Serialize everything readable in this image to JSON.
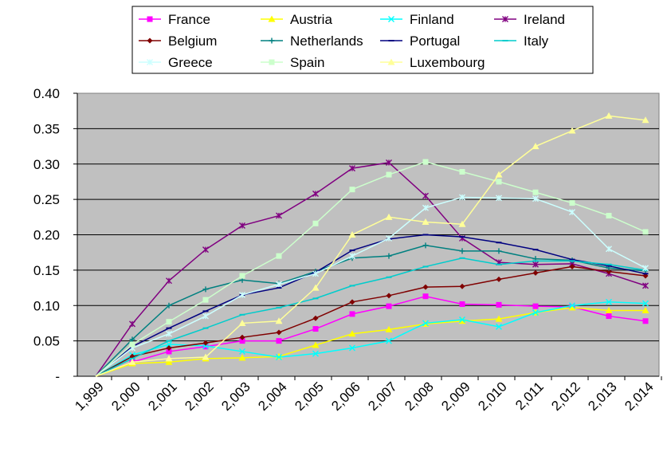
{
  "chart_data": {
    "type": "line",
    "title": "",
    "xlabel": "",
    "ylabel": "",
    "categories": [
      "1,999",
      "2,000",
      "2,001",
      "2,002",
      "2,003",
      "2,004",
      "2,005",
      "2,006",
      "2,007",
      "2,008",
      "2,009",
      "2,010",
      "2,011",
      "2,012",
      "2,013",
      "2,014"
    ],
    "ylim": [
      0,
      0.4
    ],
    "yticks": [
      0,
      0.05,
      0.1,
      0.15,
      0.2,
      0.25,
      0.3,
      0.35,
      0.4
    ],
    "ytick_labels": [
      "-",
      "0.05",
      "0.10",
      "0.15",
      "0.20",
      "0.25",
      "0.30",
      "0.35",
      "0.40"
    ],
    "grid": true,
    "legend_position": "top",
    "plot_background": "#c0c0c0",
    "series": [
      {
        "name": "France",
        "color": "#ff00ff",
        "marker": "square",
        "values": [
          0,
          0.02,
          0.035,
          0.042,
          0.05,
          0.05,
          0.067,
          0.088,
          0.099,
          0.113,
          0.102,
          0.101,
          0.099,
          0.098,
          0.085,
          0.078
        ]
      },
      {
        "name": "Austria",
        "color": "#ffff00",
        "marker": "triangle",
        "values": [
          0,
          0.018,
          0.02,
          0.025,
          0.026,
          0.028,
          0.044,
          0.06,
          0.066,
          0.074,
          0.078,
          0.081,
          0.09,
          0.097,
          0.093,
          0.093
        ]
      },
      {
        "name": "Finland",
        "color": "#00ffff",
        "marker": "x",
        "values": [
          0,
          0.03,
          0.045,
          0.043,
          0.035,
          0.027,
          0.032,
          0.04,
          0.05,
          0.075,
          0.08,
          0.07,
          0.09,
          0.1,
          0.105,
          0.103
        ]
      },
      {
        "name": "Ireland",
        "color": "#800080",
        "marker": "star",
        "values": [
          0,
          0.074,
          0.135,
          0.179,
          0.213,
          0.227,
          0.258,
          0.294,
          0.302,
          0.255,
          0.195,
          0.161,
          0.158,
          0.159,
          0.145,
          0.128
        ]
      },
      {
        "name": "Belgium",
        "color": "#800000",
        "marker": "diamond",
        "values": [
          0,
          0.028,
          0.04,
          0.047,
          0.055,
          0.062,
          0.082,
          0.105,
          0.114,
          0.126,
          0.127,
          0.137,
          0.146,
          0.155,
          0.148,
          0.142
        ]
      },
      {
        "name": "Netherlands",
        "color": "#008080",
        "marker": "plus",
        "values": [
          0,
          0.052,
          0.1,
          0.123,
          0.136,
          0.131,
          0.148,
          0.167,
          0.17,
          0.185,
          0.177,
          0.177,
          0.166,
          0.164,
          0.153,
          0.149
        ]
      },
      {
        "name": "Portugal",
        "color": "#000080",
        "marker": "dash",
        "values": [
          0,
          0.042,
          0.068,
          0.092,
          0.115,
          0.125,
          0.147,
          0.178,
          0.194,
          0.2,
          0.197,
          0.189,
          0.179,
          0.165,
          0.156,
          0.145
        ]
      },
      {
        "name": "Italy",
        "color": "#00cccc",
        "marker": "dash",
        "values": [
          0,
          0.025,
          0.05,
          0.068,
          0.087,
          0.097,
          0.11,
          0.128,
          0.14,
          0.155,
          0.167,
          0.158,
          0.163,
          0.163,
          0.158,
          0.15
        ]
      },
      {
        "name": "Greece",
        "color": "#ccffff",
        "marker": "star",
        "values": [
          0,
          0.04,
          0.06,
          0.085,
          0.115,
          0.13,
          0.145,
          0.17,
          0.195,
          0.238,
          0.253,
          0.252,
          0.251,
          0.232,
          0.18,
          0.153
        ]
      },
      {
        "name": "Spain",
        "color": "#ccffcc",
        "marker": "square",
        "values": [
          0,
          0.045,
          0.077,
          0.108,
          0.142,
          0.17,
          0.216,
          0.264,
          0.285,
          0.303,
          0.289,
          0.275,
          0.26,
          0.245,
          0.227,
          0.204
        ]
      },
      {
        "name": "Luxembourg",
        "color": "#ffff99",
        "marker": "triangle",
        "values": [
          0,
          0.02,
          0.025,
          0.027,
          0.075,
          0.078,
          0.125,
          0.2,
          0.225,
          0.218,
          0.215,
          0.285,
          0.325,
          0.347,
          0.368,
          0.362
        ]
      }
    ]
  }
}
